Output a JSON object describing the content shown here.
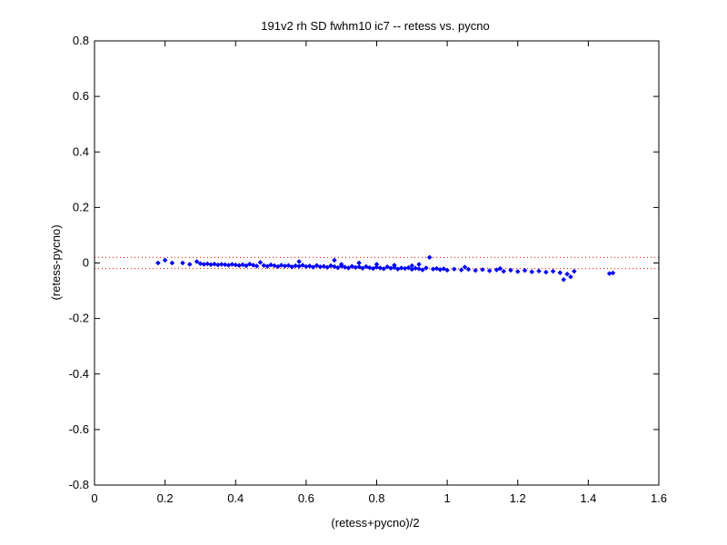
{
  "chart_data": {
    "type": "scatter",
    "title": "191v2 rh SD fwhm10 ic7 -- retess vs. pycno",
    "xlabel": "(retess+pycno)/2",
    "ylabel": "(retess-pycno)",
    "xlim": [
      0,
      1.6
    ],
    "ylim": [
      -0.8,
      0.8
    ],
    "xticks": [
      0,
      0.2,
      0.4,
      0.6,
      0.8,
      1,
      1.2,
      1.4,
      1.6
    ],
    "yticks": [
      -0.8,
      -0.6,
      -0.4,
      -0.2,
      0,
      0.2,
      0.4,
      0.6,
      0.8
    ],
    "xtick_labels": [
      "0",
      "0.2",
      "0.4",
      "0.6",
      "0.8",
      "1",
      "1.2",
      "1.4",
      "1.6"
    ],
    "ytick_labels": [
      "-0.8",
      "-0.6",
      "-0.4",
      "-0.2",
      "0",
      "0.2",
      "0.4",
      "0.6",
      "0.8"
    ],
    "grid": false,
    "reference_lines": [
      {
        "y": 0.02,
        "style": "dotted",
        "color": "#ff0000"
      },
      {
        "y": -0.02,
        "style": "dotted",
        "color": "#ff0000"
      }
    ],
    "series": [
      {
        "color": "#0000ff",
        "marker": "diamond",
        "points": [
          [
            0.18,
            0.0
          ],
          [
            0.2,
            0.01
          ],
          [
            0.22,
            0.0
          ],
          [
            0.25,
            0.0
          ],
          [
            0.27,
            -0.005
          ],
          [
            0.29,
            0.005
          ],
          [
            0.3,
            -0.002
          ],
          [
            0.31,
            -0.005
          ],
          [
            0.32,
            -0.003
          ],
          [
            0.33,
            -0.006
          ],
          [
            0.34,
            -0.004
          ],
          [
            0.35,
            -0.007
          ],
          [
            0.36,
            -0.005
          ],
          [
            0.37,
            -0.006
          ],
          [
            0.38,
            -0.008
          ],
          [
            0.39,
            -0.005
          ],
          [
            0.4,
            -0.007
          ],
          [
            0.41,
            -0.009
          ],
          [
            0.42,
            -0.006
          ],
          [
            0.43,
            -0.01
          ],
          [
            0.44,
            -0.004
          ],
          [
            0.45,
            -0.008
          ],
          [
            0.46,
            -0.011
          ],
          [
            0.47,
            0.002
          ],
          [
            0.48,
            -0.009
          ],
          [
            0.49,
            -0.012
          ],
          [
            0.5,
            -0.007
          ],
          [
            0.51,
            -0.01
          ],
          [
            0.52,
            -0.013
          ],
          [
            0.53,
            -0.008
          ],
          [
            0.54,
            -0.011
          ],
          [
            0.55,
            -0.009
          ],
          [
            0.56,
            -0.014
          ],
          [
            0.57,
            -0.01
          ],
          [
            0.58,
            -0.012
          ],
          [
            0.59,
            -0.008
          ],
          [
            0.6,
            -0.013
          ],
          [
            0.61,
            -0.011
          ],
          [
            0.62,
            -0.015
          ],
          [
            0.63,
            -0.009
          ],
          [
            0.64,
            -0.014
          ],
          [
            0.65,
            -0.012
          ],
          [
            0.66,
            -0.016
          ],
          [
            0.67,
            -0.01
          ],
          [
            0.68,
            -0.013
          ],
          [
            0.69,
            -0.017
          ],
          [
            0.7,
            -0.011
          ],
          [
            0.71,
            -0.015
          ],
          [
            0.72,
            -0.018
          ],
          [
            0.73,
            -0.012
          ],
          [
            0.74,
            -0.016
          ],
          [
            0.75,
            -0.014
          ],
          [
            0.76,
            -0.019
          ],
          [
            0.77,
            -0.013
          ],
          [
            0.78,
            -0.017
          ],
          [
            0.79,
            -0.02
          ],
          [
            0.8,
            -0.015
          ],
          [
            0.81,
            -0.018
          ],
          [
            0.82,
            -0.021
          ],
          [
            0.83,
            -0.014
          ],
          [
            0.84,
            -0.019
          ],
          [
            0.85,
            -0.016
          ],
          [
            0.86,
            -0.022
          ],
          [
            0.87,
            -0.018
          ],
          [
            0.88,
            -0.02
          ],
          [
            0.89,
            -0.017
          ],
          [
            0.9,
            -0.023
          ],
          [
            0.91,
            -0.019
          ],
          [
            0.92,
            -0.021
          ],
          [
            0.93,
            -0.025
          ],
          [
            0.94,
            -0.018
          ],
          [
            0.95,
            0.02
          ],
          [
            0.96,
            -0.022
          ],
          [
            0.97,
            -0.02
          ],
          [
            0.98,
            -0.024
          ],
          [
            0.99,
            -0.021
          ],
          [
            1.0,
            -0.026
          ],
          [
            1.02,
            -0.022
          ],
          [
            1.04,
            -0.025
          ],
          [
            1.06,
            -0.023
          ],
          [
            1.08,
            -0.027
          ],
          [
            1.1,
            -0.024
          ],
          [
            1.12,
            -0.028
          ],
          [
            1.14,
            -0.025
          ],
          [
            1.16,
            -0.03
          ],
          [
            1.18,
            -0.026
          ],
          [
            1.2,
            -0.031
          ],
          [
            1.22,
            -0.027
          ],
          [
            1.24,
            -0.032
          ],
          [
            1.26,
            -0.029
          ],
          [
            1.28,
            -0.033
          ],
          [
            1.3,
            -0.03
          ],
          [
            1.32,
            -0.035
          ],
          [
            1.33,
            -0.06
          ],
          [
            1.34,
            -0.04
          ],
          [
            1.35,
            -0.05
          ],
          [
            1.36,
            -0.03
          ],
          [
            1.46,
            -0.038
          ],
          [
            1.47,
            -0.036
          ],
          [
            0.58,
            0.005
          ],
          [
            0.68,
            0.01
          ],
          [
            0.7,
            -0.005
          ],
          [
            0.75,
            0.0
          ],
          [
            0.8,
            -0.005
          ],
          [
            0.85,
            -0.008
          ],
          [
            0.9,
            -0.01
          ],
          [
            0.92,
            -0.005
          ],
          [
            1.05,
            -0.015
          ],
          [
            1.15,
            -0.02
          ]
        ]
      }
    ]
  }
}
